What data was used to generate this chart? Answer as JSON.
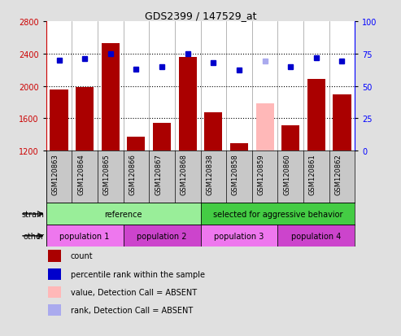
{
  "title": "GDS2399 / 147529_at",
  "samples": [
    "GSM120863",
    "GSM120864",
    "GSM120865",
    "GSM120866",
    "GSM120867",
    "GSM120868",
    "GSM120838",
    "GSM120858",
    "GSM120859",
    "GSM120860",
    "GSM120861",
    "GSM120862"
  ],
  "counts": [
    1960,
    1990,
    2530,
    1370,
    1540,
    2360,
    1670,
    1290,
    1790,
    1510,
    2090,
    1900
  ],
  "percentile_ranks": [
    70,
    71,
    75,
    63,
    65,
    75,
    68,
    62,
    69,
    65,
    72,
    69
  ],
  "absent_mask": [
    false,
    false,
    false,
    false,
    false,
    false,
    false,
    false,
    true,
    false,
    false,
    false
  ],
  "ylim_left": [
    1200,
    2800
  ],
  "ylim_right": [
    0,
    100
  ],
  "yticks_left": [
    1200,
    1600,
    2000,
    2400,
    2800
  ],
  "yticks_right": [
    0,
    25,
    50,
    75,
    100
  ],
  "bar_color_present": "#aa0000",
  "bar_color_absent": "#ffb8b8",
  "dot_color_present": "#0000cc",
  "dot_color_absent": "#aaaaee",
  "bg_color": "#e0e0e0",
  "plot_bg_color": "#ffffff",
  "xtick_bg_color": "#c8c8c8",
  "strain_groups": [
    {
      "label": "reference",
      "start": 0,
      "end": 6,
      "color": "#99ee99"
    },
    {
      "label": "selected for aggressive behavior",
      "start": 6,
      "end": 12,
      "color": "#44cc44"
    }
  ],
  "other_groups": [
    {
      "label": "population 1",
      "start": 0,
      "end": 3,
      "color": "#ee77ee"
    },
    {
      "label": "population 2",
      "start": 3,
      "end": 6,
      "color": "#cc44cc"
    },
    {
      "label": "population 3",
      "start": 6,
      "end": 9,
      "color": "#ee77ee"
    },
    {
      "label": "population 4",
      "start": 9,
      "end": 12,
      "color": "#cc44cc"
    }
  ],
  "legend_items": [
    {
      "label": "count",
      "color": "#aa0000"
    },
    {
      "label": "percentile rank within the sample",
      "color": "#0000cc"
    },
    {
      "label": "value, Detection Call = ABSENT",
      "color": "#ffb8b8"
    },
    {
      "label": "rank, Detection Call = ABSENT",
      "color": "#aaaaee"
    }
  ],
  "grid_values": [
    1600,
    2000,
    2400
  ],
  "bar_width": 0.7
}
